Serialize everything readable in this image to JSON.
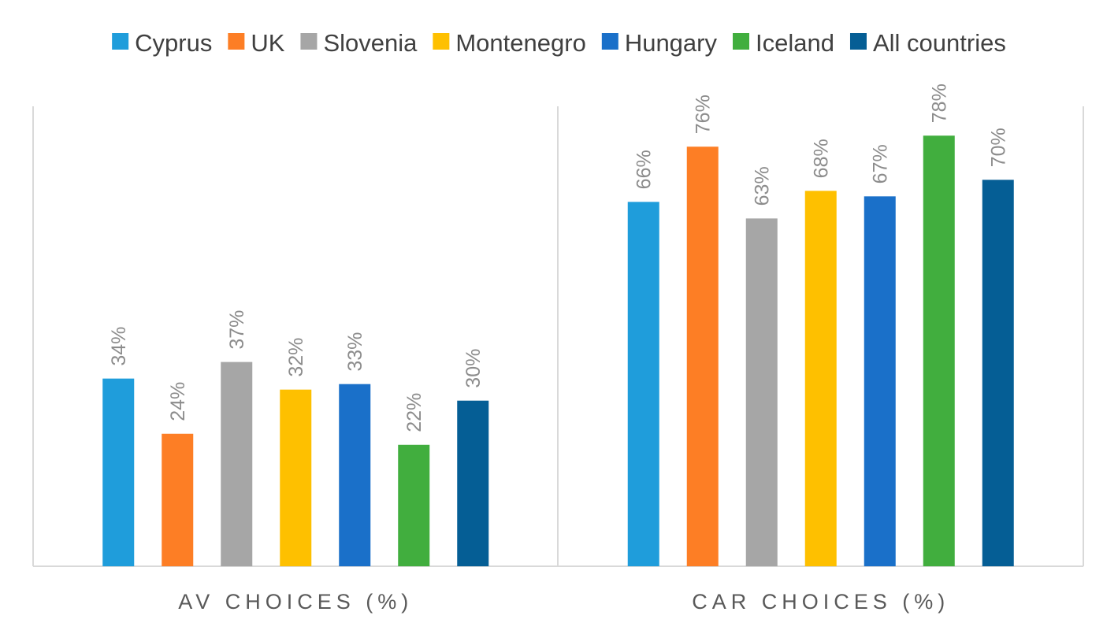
{
  "chart_data": {
    "type": "bar",
    "title": "",
    "xlabel": "",
    "ylabel": "",
    "ylim": [
      0,
      100
    ],
    "grid": false,
    "legend_position": "top",
    "categories": [
      "AV CHOICES (%)",
      "CAR CHOICES (%)"
    ],
    "series": [
      {
        "name": "Cyprus",
        "color": "#1f9ddb",
        "values": [
          34,
          66
        ],
        "labels": [
          "34%",
          "66%"
        ]
      },
      {
        "name": "UK",
        "color": "#fd7e25",
        "values": [
          24,
          76
        ],
        "labels": [
          "24%",
          "76%"
        ]
      },
      {
        "name": "Slovenia",
        "color": "#a6a6a6",
        "values": [
          37,
          63
        ],
        "labels": [
          "37%",
          "63%"
        ]
      },
      {
        "name": "Montenegro",
        "color": "#fec000",
        "values": [
          32,
          68
        ],
        "labels": [
          "32%",
          "68%"
        ]
      },
      {
        "name": "Hungary",
        "color": "#1a70c9",
        "values": [
          33,
          67
        ],
        "labels": [
          "33%",
          "67%"
        ]
      },
      {
        "name": "Iceland",
        "color": "#41ae3e",
        "values": [
          22,
          78
        ],
        "labels": [
          "22%",
          "78%"
        ]
      },
      {
        "name": "All countries",
        "color": "#055e95",
        "values": [
          30,
          70
        ],
        "labels": [
          "30%",
          "70%"
        ]
      }
    ]
  }
}
